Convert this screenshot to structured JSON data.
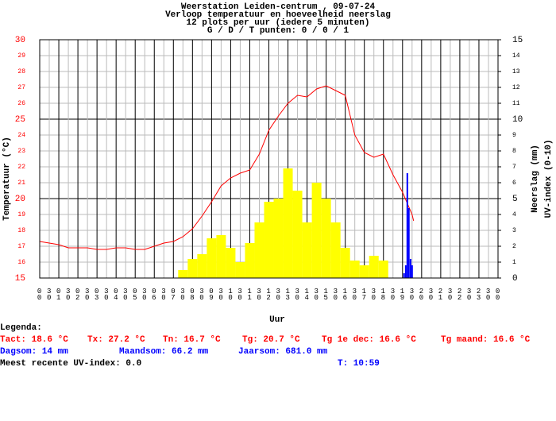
{
  "chart_data": {
    "type": "weather",
    "title_lines": [
      "Weerstation Leiden-centrum , 09-07-24",
      "Verloop temperatuur en hoeveelheid neerslag",
      "12 plots per uur (iedere 5 minuten)",
      "G / D / T punten: 0 / 0 / 1"
    ],
    "xlabel": "Uur",
    "ylabel": "Temperatuur (°C)",
    "y2label_1": "Neerslag (mm)",
    "y2label_2": "UV-index (0-10)",
    "xlim": [
      0,
      24
    ],
    "ylim": [
      15,
      30
    ],
    "y2lim": [
      0,
      15
    ],
    "grid": true,
    "xticks": [
      {
        "value": 0,
        "label": "00"
      },
      {
        "value": 0.5,
        "label": "30"
      },
      {
        "value": 1,
        "label": "01"
      },
      {
        "value": 1.5,
        "label": "30"
      },
      {
        "value": 2,
        "label": "02"
      },
      {
        "value": 2.5,
        "label": "30"
      },
      {
        "value": 3,
        "label": "03"
      },
      {
        "value": 3.5,
        "label": "30"
      },
      {
        "value": 4,
        "label": "04"
      },
      {
        "value": 4.5,
        "label": "30"
      },
      {
        "value": 5,
        "label": "05"
      },
      {
        "value": 5.5,
        "label": "30"
      },
      {
        "value": 6,
        "label": "06"
      },
      {
        "value": 6.5,
        "label": "30"
      },
      {
        "value": 7,
        "label": "07"
      },
      {
        "value": 7.5,
        "label": "30"
      },
      {
        "value": 8,
        "label": "08"
      },
      {
        "value": 8.5,
        "label": "30"
      },
      {
        "value": 9,
        "label": "09"
      },
      {
        "value": 9.5,
        "label": "30"
      },
      {
        "value": 10,
        "label": "10"
      },
      {
        "value": 10.5,
        "label": "30"
      },
      {
        "value": 11,
        "label": "11"
      },
      {
        "value": 11.5,
        "label": "30"
      },
      {
        "value": 12,
        "label": "12"
      },
      {
        "value": 12.5,
        "label": "30"
      },
      {
        "value": 13,
        "label": "13"
      },
      {
        "value": 13.5,
        "label": "30"
      },
      {
        "value": 14,
        "label": "14"
      },
      {
        "value": 14.5,
        "label": "30"
      },
      {
        "value": 15,
        "label": "15"
      },
      {
        "value": 15.5,
        "label": "30"
      },
      {
        "value": 16,
        "label": "16"
      },
      {
        "value": 16.5,
        "label": "30"
      },
      {
        "value": 17,
        "label": "17"
      },
      {
        "value": 17.5,
        "label": "30"
      },
      {
        "value": 18,
        "label": "18"
      },
      {
        "value": 18.5,
        "label": "30"
      },
      {
        "value": 19,
        "label": "19"
      },
      {
        "value": 19.5,
        "label": "30"
      },
      {
        "value": 20,
        "label": "20"
      },
      {
        "value": 20.5,
        "label": "30"
      },
      {
        "value": 21,
        "label": "21"
      },
      {
        "value": 21.5,
        "label": "30"
      },
      {
        "value": 22,
        "label": "22"
      },
      {
        "value": 22.5,
        "label": "30"
      },
      {
        "value": 23,
        "label": "23"
      },
      {
        "value": 23.5,
        "label": "30"
      },
      {
        "value": 24,
        "label": "00"
      }
    ],
    "yticks": [
      15,
      16,
      17,
      18,
      19,
      20,
      21,
      22,
      23,
      24,
      25,
      26,
      27,
      28,
      29,
      30
    ],
    "y2ticks": [
      0,
      1,
      2,
      3,
      4,
      5,
      6,
      7,
      8,
      9,
      10,
      11,
      12,
      13,
      14,
      15
    ],
    "series": [
      {
        "name": "Temperatuur",
        "kind": "line",
        "color": "#ff0000",
        "x": [
          0,
          0.5,
          1,
          1.5,
          2,
          2.5,
          3,
          3.5,
          4,
          4.5,
          5,
          5.5,
          6,
          6.5,
          7,
          7.5,
          8,
          8.5,
          9,
          9.5,
          10,
          10.5,
          11,
          11.5,
          12,
          12.5,
          13,
          13.5,
          14,
          14.5,
          15,
          15.5,
          16,
          16.5,
          17,
          17.5,
          18,
          18.5,
          19,
          19.5,
          19.58
        ],
        "values": [
          17.3,
          17.2,
          17.1,
          16.9,
          16.9,
          16.9,
          16.8,
          16.8,
          16.9,
          16.9,
          16.8,
          16.8,
          17.0,
          17.2,
          17.3,
          17.6,
          18.1,
          18.9,
          19.8,
          20.8,
          21.3,
          21.6,
          21.8,
          22.8,
          24.3,
          25.2,
          26.0,
          26.5,
          26.4,
          26.9,
          27.1,
          26.8,
          26.5,
          24.0,
          22.9,
          22.6,
          22.8,
          21.5,
          20.4,
          19.0,
          18.6
        ]
      },
      {
        "name": "UV-index",
        "kind": "bar",
        "axis": "y2",
        "color": "#ffff00",
        "width": 0.5,
        "x": [
          7.5,
          8,
          8.5,
          9,
          9.5,
          10,
          10.5,
          11,
          11.5,
          12,
          12.5,
          13,
          13.5,
          14,
          14.5,
          15,
          15.5,
          16,
          16.5,
          17,
          17.5,
          18
        ],
        "values": [
          0.5,
          1.2,
          1.5,
          2.5,
          2.7,
          1.9,
          1.0,
          2.2,
          3.5,
          4.8,
          5.0,
          6.9,
          5.5,
          3.5,
          6.0,
          5.0,
          3.5,
          1.9,
          1.1,
          0.8,
          1.4,
          1.1
        ]
      },
      {
        "name": "Neerslag",
        "kind": "bar",
        "axis": "y2",
        "color": "#0000ff",
        "width": 0.083,
        "x": [
          19.08,
          19.17,
          19.25,
          19.33,
          19.42,
          19.5
        ],
        "values": [
          0.3,
          0.8,
          6.6,
          4.4,
          1.2,
          0.8
        ]
      }
    ]
  },
  "legend": {
    "title": "Legenda:",
    "rows": [
      {
        "color": "#ff0000",
        "items": [
          "Tact: 18.6 °C",
          "Tx: 27.2 °C",
          "Tn: 16.7 °C",
          "Tg: 20.7 °C",
          "Tg 1e dec: 16.6 °C",
          "Tg maand: 16.6 °C"
        ]
      },
      {
        "color": "#0000ff",
        "items": [
          "Dagsom: 14 mm",
          "Maandsom: 66.2 mm",
          "Jaarsom: 681.0 mm"
        ]
      },
      {
        "color": "#000000",
        "items": [
          "Meest recente UV-index: 0.0"
        ]
      },
      {
        "color": "#0000ff",
        "items": [
          "T: 10:59"
        ]
      }
    ]
  }
}
